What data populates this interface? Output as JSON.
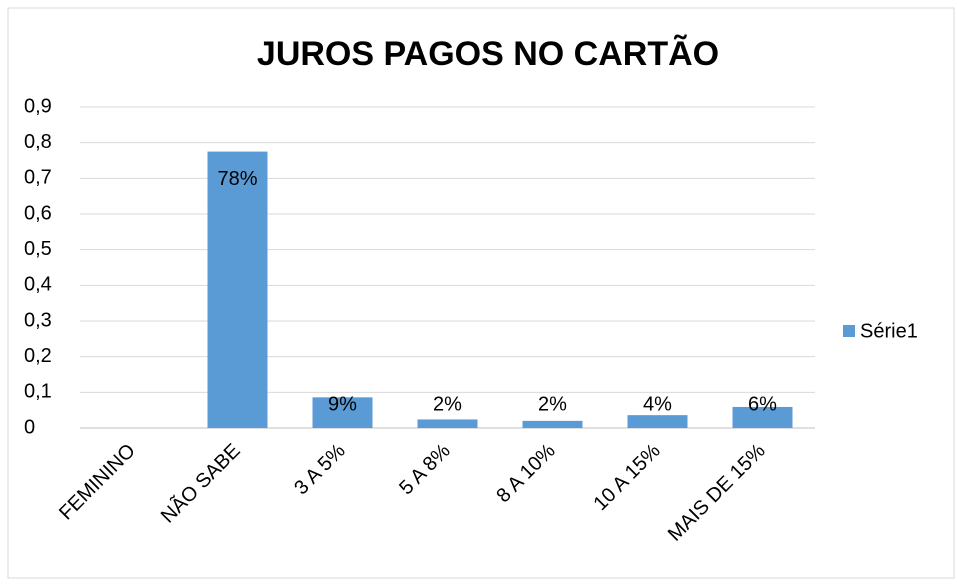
{
  "chart_data": {
    "type": "bar",
    "title": "JUROS PAGOS NO CARTÃO",
    "categories": [
      "FEMININO",
      "NÃO SABE",
      "3 A 5%",
      "5 A 8%",
      "8 A 10%",
      "10 A 15%",
      "MAIS DE 15%"
    ],
    "series": [
      {
        "name": "Série1",
        "color": "#5b9bd5",
        "values": [
          null,
          0.775,
          0.086,
          0.024,
          0.02,
          0.036,
          0.059
        ],
        "value_labels": [
          null,
          "78%",
          "9%",
          "2%",
          "2%",
          "4%",
          "6%"
        ]
      }
    ],
    "ylim": [
      0,
      0.9
    ],
    "yticks": [
      0,
      {
        "value": 0.1,
        "label": "0,1"
      },
      {
        "value": 0.2,
        "label": "0,2"
      },
      {
        "value": 0.3,
        "label": "0,3"
      },
      {
        "value": 0.4,
        "label": "0,4"
      },
      {
        "value": 0.5,
        "label": "0,5"
      },
      {
        "value": 0.6,
        "label": "0,6"
      },
      {
        "value": 0.7,
        "label": "0,7"
      },
      {
        "value": 0.8,
        "label": "0,8"
      },
      {
        "value": 0.9,
        "label": "0,9"
      }
    ],
    "grid": true,
    "legend": "right"
  }
}
